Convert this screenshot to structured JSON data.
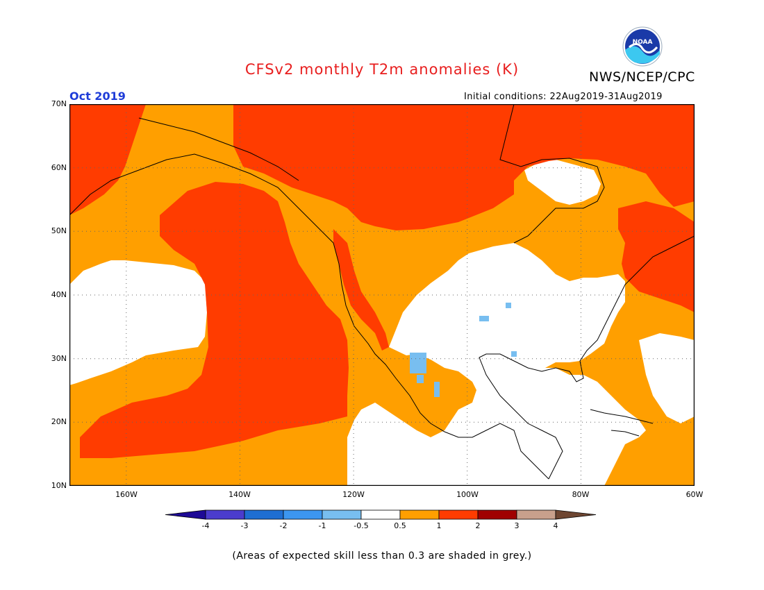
{
  "title": "CFSv2 monthly T2m anomalies (K)",
  "agency": "NWS/NCEP/CPC",
  "logo_text": "NOAA",
  "month": "Oct 2019",
  "initial_conditions": "Initial conditions: 22Aug2019-31Aug2019",
  "footnote": "(Areas of expected skill less than 0.3 are shaded in grey.)",
  "lat_labels": [
    "70N",
    "60N",
    "50N",
    "40N",
    "30N",
    "20N",
    "10N"
  ],
  "lon_labels": [
    "160W",
    "140W",
    "120W",
    "100W",
    "80W",
    "60W"
  ],
  "colorbar": {
    "ticks": [
      "-4",
      "-3",
      "-2",
      "-1",
      "-0.5",
      "0.5",
      "1",
      "2",
      "3",
      "4"
    ],
    "colors": [
      "#1e0a96",
      "#4b3ccd",
      "#1e6ed2",
      "#3c96f0",
      "#78bef0",
      "#ffffff",
      "#ff9f00",
      "#ff3c00",
      "#a00000",
      "#c8a08c",
      "#6e4632"
    ]
  },
  "colors": {
    "title": "#e81e1e",
    "month": "#1e3cd8",
    "anomaly_0_5_to_1": "#ff9f00",
    "anomaly_1_to_2": "#ff3c00",
    "anomaly_neg_0_5_to_neg_1": "#78bef0"
  }
}
